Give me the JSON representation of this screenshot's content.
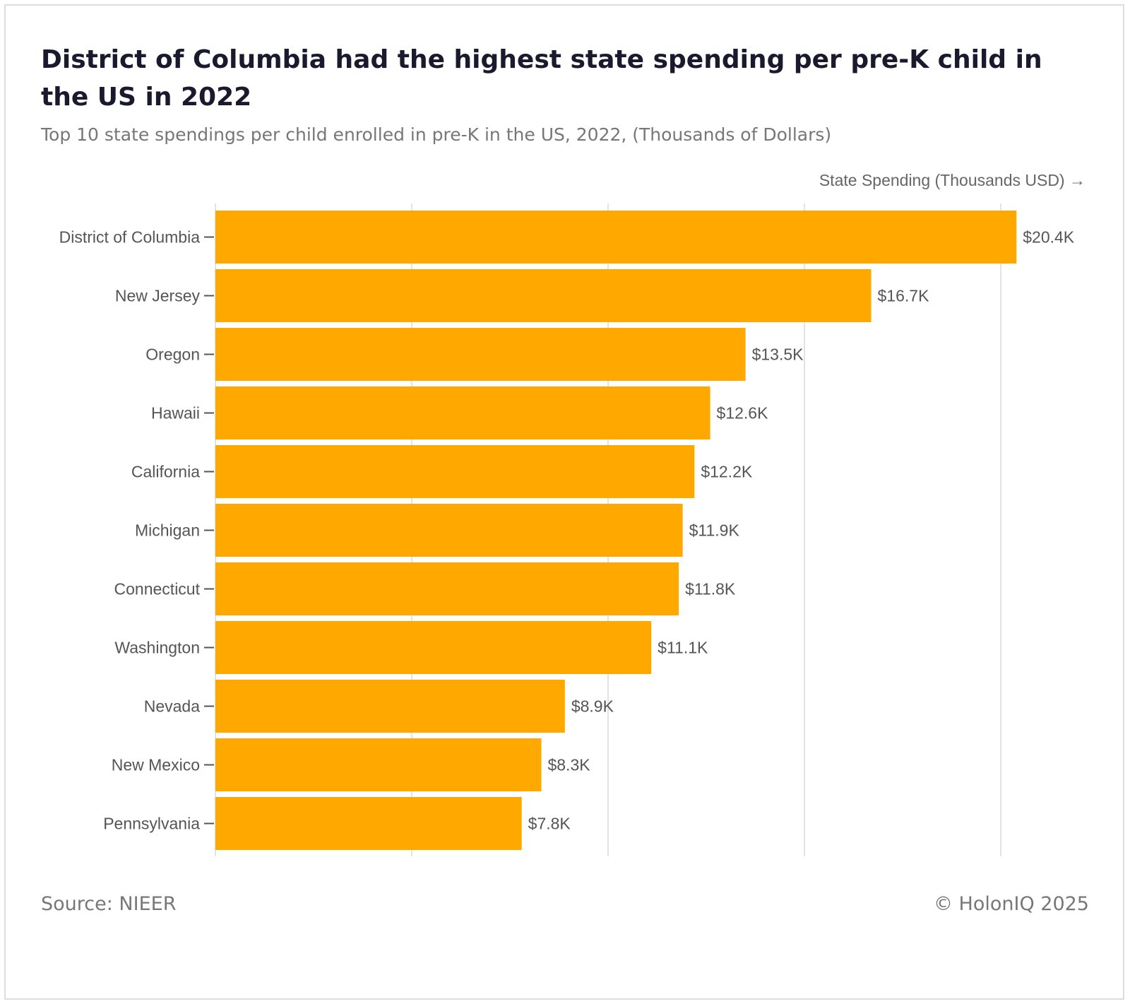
{
  "header": {
    "title": "District of Columbia had the highest state spending per pre-K child in the US in 2022",
    "subtitle": "Top 10 state spendings per child enrolled in pre-K in the US, 2022, (Thousands of Dollars)"
  },
  "footer": {
    "source": "Source: NIEER",
    "copyright": "© HolonIQ 2025"
  },
  "colors": {
    "bar": "#FFA800",
    "grid": "#e3e3e3",
    "label": "#555555",
    "value_label": "#555555"
  },
  "chart_data": {
    "type": "bar",
    "orientation": "horizontal",
    "xlabel": "State Spending (Thousands USD) →",
    "ylabel": "",
    "xlim": [
      0,
      21
    ],
    "grid": true,
    "gridline_values": [
      0,
      5,
      10,
      15,
      20
    ],
    "categories": [
      "District of Columbia",
      "New Jersey",
      "Oregon",
      "Hawaii",
      "California",
      "Michigan",
      "Connecticut",
      "Washington",
      "Nevada",
      "New Mexico",
      "Pennsylvania"
    ],
    "values": [
      20.4,
      16.7,
      13.5,
      12.6,
      12.2,
      11.9,
      11.8,
      11.1,
      8.9,
      8.3,
      7.8
    ],
    "value_labels": [
      "$20.4K",
      "$16.7K",
      "$13.5K",
      "$12.6K",
      "$12.2K",
      "$11.9K",
      "$11.8K",
      "$11.1K",
      "$8.9K",
      "$8.3K",
      "$7.8K"
    ]
  }
}
